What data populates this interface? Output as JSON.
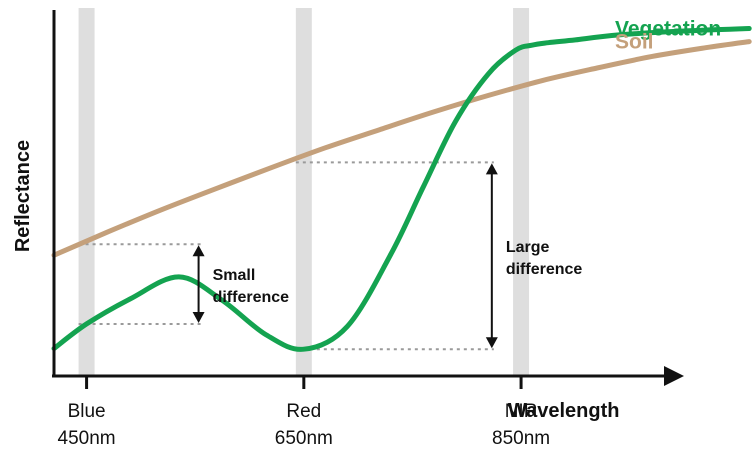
{
  "chart_data": {
    "type": "line",
    "title": "",
    "xlabel": "Wavelength",
    "ylabel": "Reflectance",
    "x_ticks": [
      {
        "name": "Blue",
        "wavelength": "450nm",
        "x": 450
      },
      {
        "name": "Red",
        "wavelength": "650nm",
        "x": 650
      },
      {
        "name": "NIR",
        "wavelength": "850nm",
        "x": 850
      }
    ],
    "xlim": [
      420,
      1000
    ],
    "ylim": [
      0,
      100
    ],
    "series": [
      {
        "name": "Vegetation",
        "color": "#14a350",
        "x": [
          420,
          450,
          490,
          535,
          575,
          615,
          650,
          690,
          730,
          760,
          790,
          820,
          845,
          860,
          875,
          900,
          940,
          1000,
          1060
        ],
        "y": [
          6.6,
          13.5,
          20.5,
          26.7,
          20.1,
          10.5,
          6.4,
          12.8,
          33,
          52,
          70.6,
          83.8,
          90.4,
          91.8,
          92.5,
          93.3,
          94.7,
          95.8,
          96.5
        ]
      },
      {
        "name": "Soil",
        "color": "#c4a07b",
        "x": [
          420,
          470,
          520,
          570,
          620,
          670,
          720,
          770,
          820,
          870,
          920,
          970,
          1020,
          1060
        ],
        "y": [
          32.8,
          39.4,
          45.7,
          51.6,
          57.4,
          63,
          68.1,
          73.1,
          77.7,
          81.9,
          85.4,
          88.6,
          91.1,
          92.8
        ]
      }
    ],
    "highlight_bands": [
      450,
      650,
      850
    ],
    "annotations": [
      {
        "text_lines": [
          "Small",
          "difference"
        ],
        "at": 450,
        "from": 13.5,
        "to": 35.9
      },
      {
        "text_lines": [
          "Large",
          "difference"
        ],
        "at": 650,
        "from": 6.4,
        "to": 58.9
      }
    ],
    "grid": false,
    "legend": "inline at line ends"
  }
}
